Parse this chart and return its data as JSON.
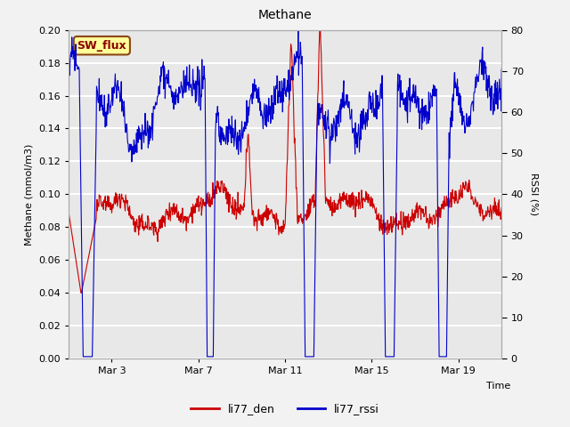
{
  "title": "Methane",
  "ylabel_left": "Methane (mmol/m3)",
  "ylabel_right": "RSSI (%)",
  "xlabel": "Time",
  "ylim_left": [
    0.0,
    0.2
  ],
  "ylim_right": [
    0,
    80
  ],
  "yticks_left": [
    0.0,
    0.02,
    0.04,
    0.06,
    0.08,
    0.1,
    0.12,
    0.14,
    0.16,
    0.18,
    0.2
  ],
  "yticks_right": [
    0,
    10,
    20,
    30,
    40,
    50,
    60,
    70,
    80
  ],
  "xtick_labels": [
    "Mar 3",
    "Mar 7",
    "Mar 11",
    "Mar 15",
    "Mar 19"
  ],
  "xtick_positions": [
    2,
    6,
    10,
    14,
    18
  ],
  "legend_labels": [
    "li77_den",
    "li77_rssi"
  ],
  "legend_colors": [
    "#cc0000",
    "#0000cc"
  ],
  "sw_flux_label": "SW_flux",
  "fig_bg_color": "#f2f2f2",
  "plot_bg_color": "#e8e8e8",
  "line_color_red": "#cc0000",
  "line_color_blue": "#0000cc",
  "grid_color": "#ffffff",
  "sw_flux_bg": "#ffff99",
  "sw_flux_border": "#8b4513",
  "title_fontsize": 10,
  "label_fontsize": 8,
  "tick_fontsize": 8
}
